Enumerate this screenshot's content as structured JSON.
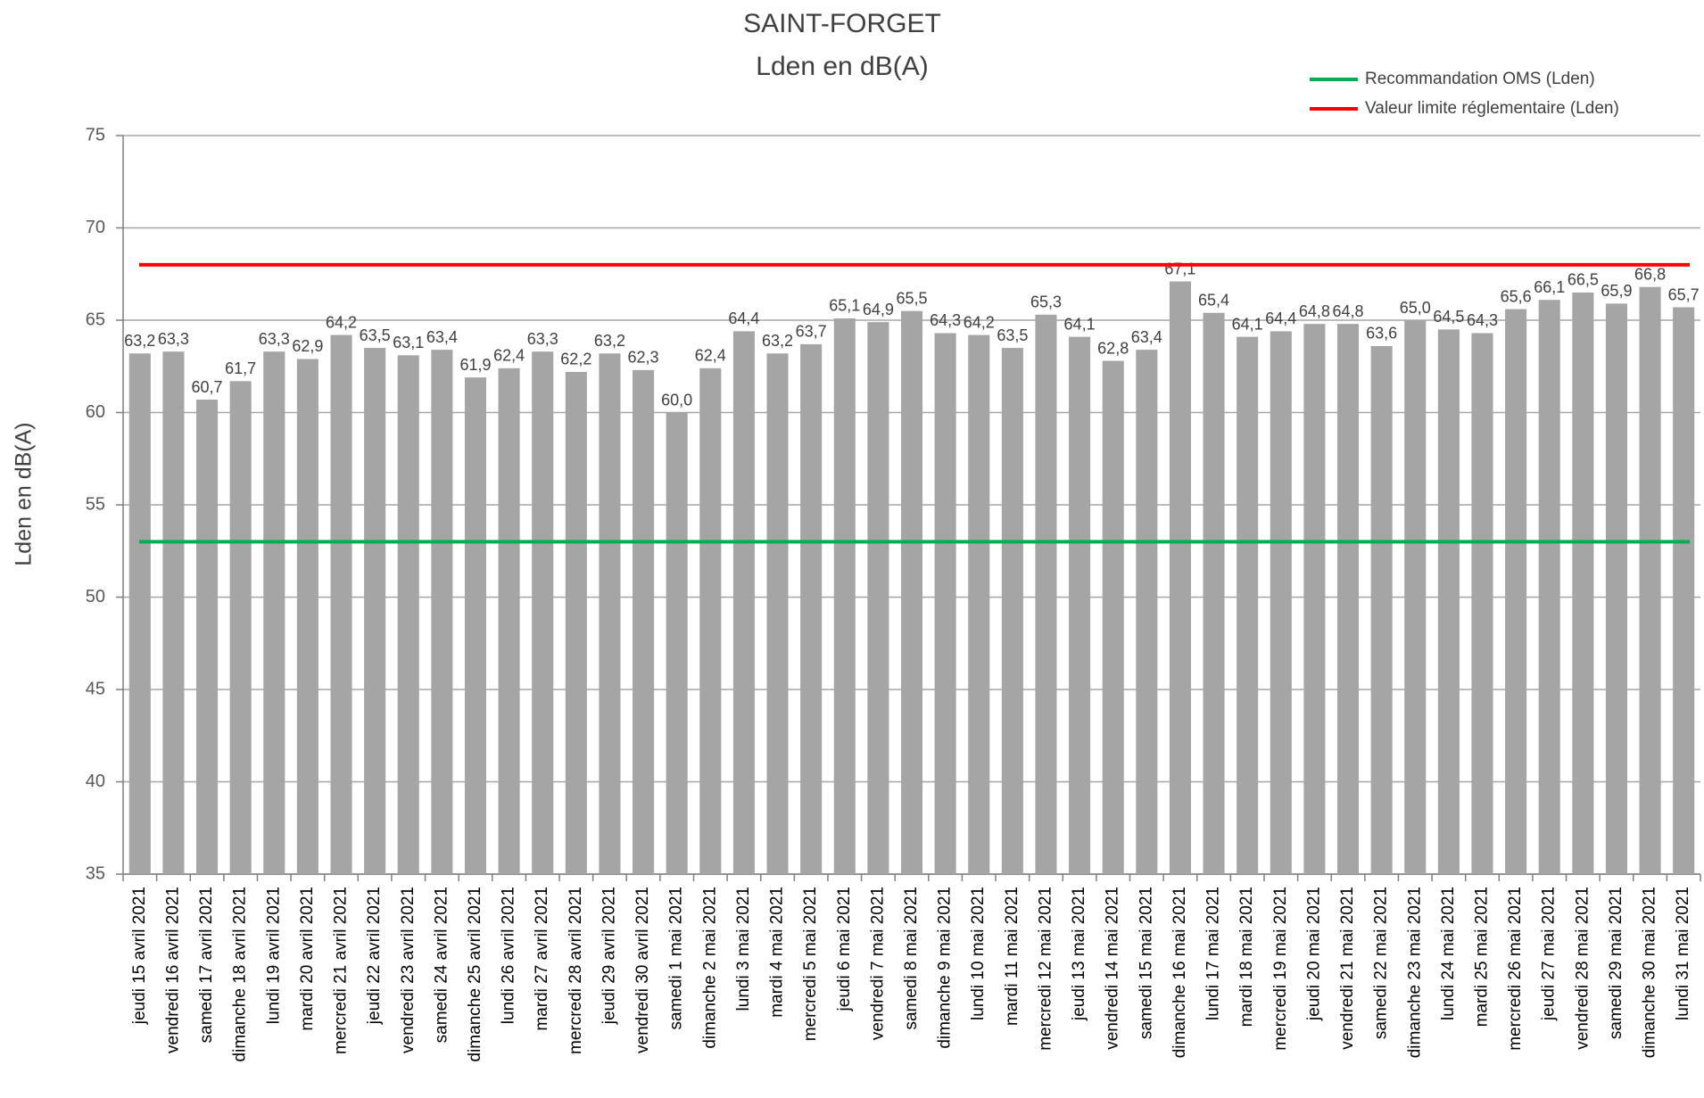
{
  "chart_data": {
    "type": "bar",
    "title": "SAINT-FORGET",
    "subtitle": "Lden en dB(A)",
    "y_axis_label": "Lden en dB(A)",
    "categories": [
      "jeudi 15 avril 2021",
      "vendredi 16 avril 2021",
      "samedi 17 avril 2021",
      "dimanche 18 avril 2021",
      "lundi 19 avril 2021",
      "mardi 20 avril 2021",
      "mercredi 21 avril 2021",
      "jeudi 22 avril 2021",
      "vendredi 23 avril 2021",
      "samedi 24 avril 2021",
      "dimanche 25 avril 2021",
      "lundi 26 avril 2021",
      "mardi 27 avril 2021",
      "mercredi 28 avril 2021",
      "jeudi 29 avril 2021",
      "vendredi 30 avril 2021",
      "samedi 1 mai 2021",
      "dimanche 2 mai 2021",
      "lundi 3 mai 2021",
      "mardi 4 mai 2021",
      "mercredi 5 mai 2021",
      "jeudi 6 mai 2021",
      "vendredi 7 mai 2021",
      "samedi 8 mai 2021",
      "dimanche 9 mai 2021",
      "lundi 10 mai 2021",
      "mardi 11 mai 2021",
      "mercredi 12 mai 2021",
      "jeudi 13 mai 2021",
      "vendredi 14 mai 2021",
      "samedi 15 mai 2021",
      "dimanche 16 mai 2021",
      "lundi 17 mai 2021",
      "mardi 18 mai 2021",
      "mercredi 19 mai 2021",
      "jeudi 20 mai 2021",
      "vendredi 21 mai 2021",
      "samedi 22 mai 2021",
      "dimanche 23 mai 2021",
      "lundi 24 mai 2021",
      "mardi 25 mai 2021",
      "mercredi 26 mai 2021",
      "jeudi 27 mai 2021",
      "vendredi 28 mai 2021",
      "samedi 29 mai 2021",
      "dimanche 30 mai 2021",
      "lundi 31 mai 2021"
    ],
    "values": [
      63.2,
      63.3,
      60.7,
      61.7,
      63.3,
      62.9,
      64.2,
      63.5,
      63.1,
      63.4,
      61.9,
      62.4,
      63.3,
      62.2,
      63.2,
      62.3,
      60.0,
      62.4,
      64.4,
      63.2,
      63.7,
      65.1,
      64.9,
      65.5,
      64.3,
      64.2,
      63.5,
      65.3,
      64.1,
      62.8,
      63.4,
      67.1,
      65.4,
      64.1,
      64.4,
      64.8,
      64.8,
      63.6,
      65.0,
      64.5,
      64.3,
      65.6,
      66.1,
      66.5,
      65.9,
      66.8,
      65.7
    ],
    "value_labels": [
      "63,2",
      "63,3",
      "60,7",
      "61,7",
      "63,3",
      "62,9",
      "64,2",
      "63,5",
      "63,1",
      "63,4",
      "61,9",
      "62,4",
      "63,3",
      "62,2",
      "63,2",
      "62,3",
      "60,0",
      "62,4",
      "64,4",
      "63,2",
      "63,7",
      "65,1",
      "64,9",
      "65,5",
      "64,3",
      "64,2",
      "63,5",
      "65,3",
      "64,1",
      "62,8",
      "63,4",
      "67,1",
      "65,4",
      "64,1",
      "64,4",
      "64,8",
      "64,8",
      "63,6",
      "65,0",
      "64,5",
      "64,3",
      "65,6",
      "66,1",
      "66,5",
      "65,9",
      "66,8",
      "65,7"
    ],
    "color": "#a5a5a5",
    "reference_lines": [
      {
        "name": "Recommandation OMS (Lden)",
        "color": "#00b050",
        "value": 53
      },
      {
        "name": "Valeur limite réglementaire (Lden)",
        "color": "#ff0000",
        "value": 68
      }
    ],
    "ylim": [
      35,
      75
    ],
    "yticks": [
      35,
      40,
      45,
      50,
      55,
      60,
      65,
      70,
      75
    ],
    "grid": true,
    "legend": "top-right"
  }
}
